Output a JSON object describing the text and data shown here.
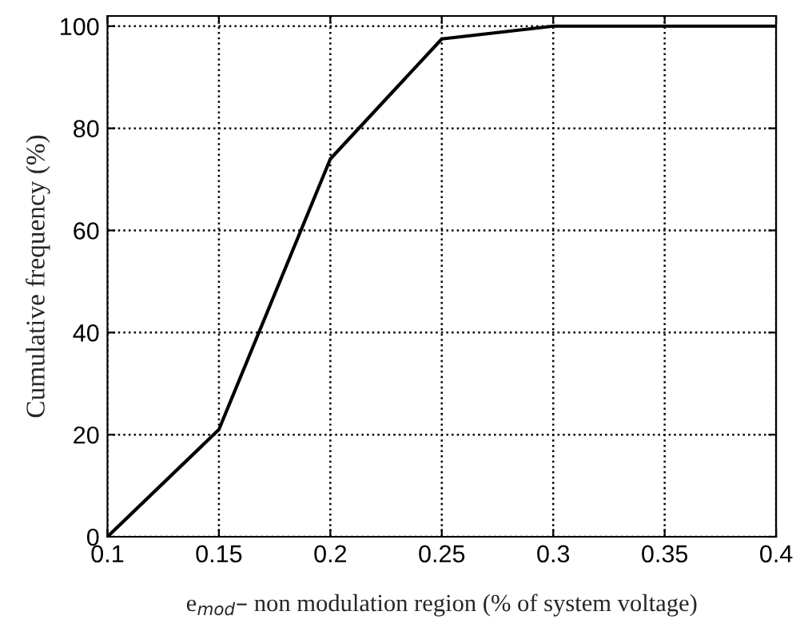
{
  "chart_data": {
    "type": "line",
    "xlabel": "e$_{mod}$– non modulation region (% of system voltage)",
    "ylabel": "Cumulative frequency (%)",
    "x": [
      0.1,
      0.15,
      0.2,
      0.25,
      0.3,
      0.35,
      0.4
    ],
    "series": [
      {
        "color": "#000000",
        "values": [
          0,
          21,
          74,
          97.5,
          100,
          100,
          100
        ]
      }
    ],
    "xlim": [
      0.1,
      0.4
    ],
    "xticks": [
      0.1,
      0.15,
      0.2,
      0.25,
      0.3,
      0.35,
      0.4
    ],
    "ylim": [
      0,
      102
    ],
    "yticks": [
      0,
      20,
      40,
      60,
      80,
      100
    ],
    "grid": true,
    "line_style": "solid",
    "marker": "none"
  }
}
